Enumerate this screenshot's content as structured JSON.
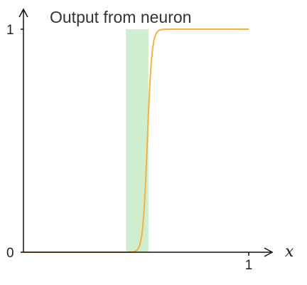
{
  "chart_data": {
    "type": "line",
    "title": "Output from neuron",
    "xlabel": "x",
    "ylabel": "",
    "xlim": [
      0,
      1
    ],
    "ylim": [
      0,
      1
    ],
    "xticks": [
      {
        "value": 1,
        "label": "1"
      }
    ],
    "yticks": [
      {
        "value": 0,
        "label": "0"
      },
      {
        "value": 1,
        "label": "1"
      }
    ],
    "grid": false,
    "series": [
      {
        "function": "sigmoid",
        "weight": 100,
        "bias": -55,
        "x_range": [
          0,
          1
        ],
        "color": "#f5b041"
      }
    ],
    "highlight_band": {
      "x_start": 0.455,
      "x_end": 0.555,
      "color": "#cfeecf"
    },
    "axis_color": "#111111"
  }
}
